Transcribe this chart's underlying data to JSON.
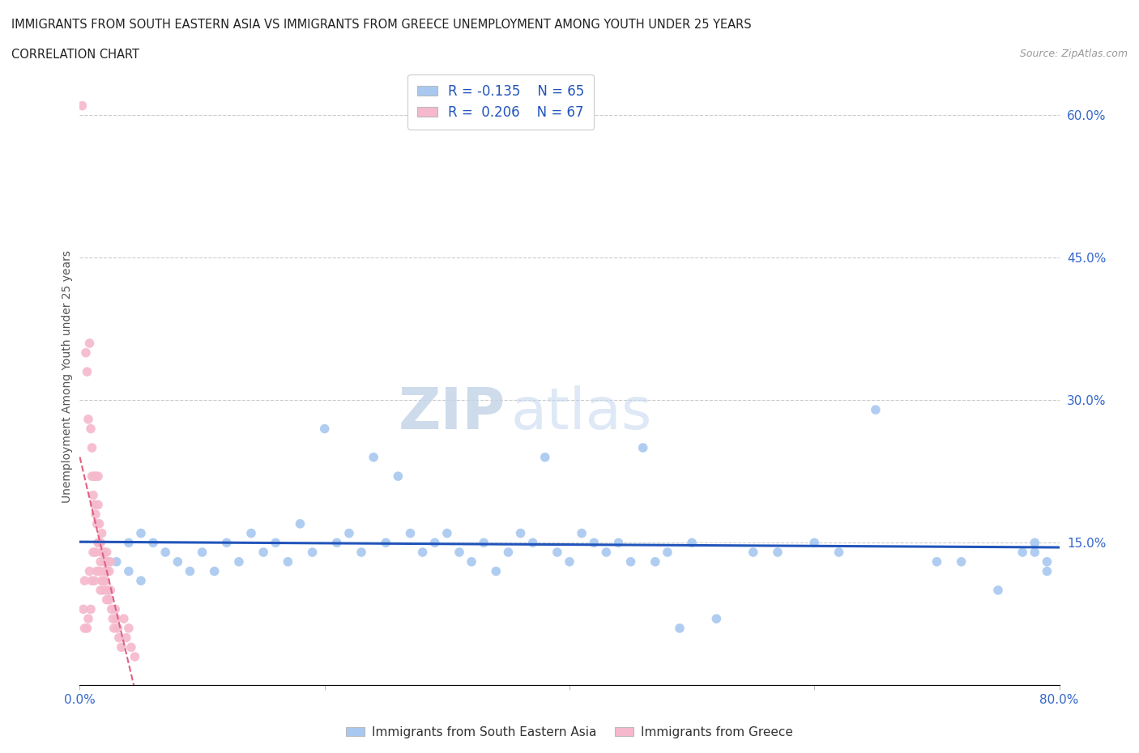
{
  "title_line1": "IMMIGRANTS FROM SOUTH EASTERN ASIA VS IMMIGRANTS FROM GREECE UNEMPLOYMENT AMONG YOUTH UNDER 25 YEARS",
  "title_line2": "CORRELATION CHART",
  "source": "Source: ZipAtlas.com",
  "ylabel": "Unemployment Among Youth under 25 years",
  "xlim": [
    0.0,
    0.8
  ],
  "ylim": [
    0.0,
    0.65
  ],
  "yticks_right": [
    0.15,
    0.3,
    0.45,
    0.6
  ],
  "ytick_labels_right": [
    "15.0%",
    "30.0%",
    "45.0%",
    "60.0%"
  ],
  "series1_name": "Immigrants from South Eastern Asia",
  "series1_color": "#a8c8f0",
  "series1_line_color": "#2255bb",
  "series1_R": -0.135,
  "series1_N": 65,
  "series2_name": "Immigrants from Greece",
  "series2_color": "#f5b8cc",
  "series2_line_color": "#e06080",
  "series2_R": 0.206,
  "series2_N": 67,
  "watermark_ZIP": "ZIP",
  "watermark_atlas": "atlas",
  "legend_R_color": "#2255bb",
  "background_color": "#ffffff",
  "grid_color": "#cccccc",
  "series1_x": [
    0.02,
    0.03,
    0.04,
    0.04,
    0.05,
    0.05,
    0.06,
    0.07,
    0.08,
    0.09,
    0.1,
    0.11,
    0.12,
    0.13,
    0.14,
    0.15,
    0.16,
    0.17,
    0.18,
    0.19,
    0.2,
    0.21,
    0.22,
    0.23,
    0.24,
    0.25,
    0.26,
    0.27,
    0.28,
    0.29,
    0.3,
    0.31,
    0.32,
    0.33,
    0.34,
    0.35,
    0.36,
    0.37,
    0.38,
    0.39,
    0.4,
    0.41,
    0.42,
    0.43,
    0.44,
    0.45,
    0.46,
    0.47,
    0.48,
    0.49,
    0.5,
    0.52,
    0.55,
    0.57,
    0.6,
    0.62,
    0.65,
    0.7,
    0.72,
    0.75,
    0.77,
    0.78,
    0.79,
    0.79,
    0.78
  ],
  "series1_y": [
    0.14,
    0.13,
    0.15,
    0.12,
    0.16,
    0.11,
    0.15,
    0.14,
    0.13,
    0.12,
    0.14,
    0.12,
    0.15,
    0.13,
    0.16,
    0.14,
    0.15,
    0.13,
    0.17,
    0.14,
    0.27,
    0.15,
    0.16,
    0.14,
    0.24,
    0.15,
    0.22,
    0.16,
    0.14,
    0.15,
    0.16,
    0.14,
    0.13,
    0.15,
    0.12,
    0.14,
    0.16,
    0.15,
    0.24,
    0.14,
    0.13,
    0.16,
    0.15,
    0.14,
    0.15,
    0.13,
    0.25,
    0.13,
    0.14,
    0.06,
    0.15,
    0.07,
    0.14,
    0.14,
    0.15,
    0.14,
    0.29,
    0.13,
    0.13,
    0.1,
    0.14,
    0.15,
    0.12,
    0.13,
    0.14
  ],
  "series2_x": [
    0.002,
    0.003,
    0.004,
    0.004,
    0.005,
    0.006,
    0.006,
    0.007,
    0.007,
    0.008,
    0.008,
    0.009,
    0.009,
    0.01,
    0.01,
    0.01,
    0.011,
    0.011,
    0.012,
    0.012,
    0.012,
    0.013,
    0.013,
    0.013,
    0.014,
    0.014,
    0.015,
    0.015,
    0.015,
    0.016,
    0.016,
    0.016,
    0.017,
    0.017,
    0.017,
    0.018,
    0.018,
    0.018,
    0.019,
    0.019,
    0.02,
    0.02,
    0.02,
    0.021,
    0.021,
    0.022,
    0.022,
    0.022,
    0.023,
    0.023,
    0.024,
    0.024,
    0.025,
    0.025,
    0.026,
    0.027,
    0.028,
    0.029,
    0.03,
    0.031,
    0.032,
    0.034,
    0.036,
    0.038,
    0.04,
    0.042,
    0.045
  ],
  "series2_y": [
    0.61,
    0.08,
    0.11,
    0.06,
    0.35,
    0.33,
    0.06,
    0.28,
    0.07,
    0.36,
    0.12,
    0.27,
    0.08,
    0.25,
    0.22,
    0.11,
    0.2,
    0.14,
    0.22,
    0.19,
    0.11,
    0.22,
    0.18,
    0.14,
    0.17,
    0.12,
    0.22,
    0.19,
    0.15,
    0.17,
    0.15,
    0.12,
    0.15,
    0.13,
    0.1,
    0.16,
    0.14,
    0.11,
    0.14,
    0.11,
    0.14,
    0.12,
    0.1,
    0.13,
    0.11,
    0.14,
    0.12,
    0.09,
    0.13,
    0.1,
    0.12,
    0.09,
    0.13,
    0.1,
    0.08,
    0.07,
    0.06,
    0.08,
    0.07,
    0.06,
    0.05,
    0.04,
    0.07,
    0.05,
    0.06,
    0.04,
    0.03
  ]
}
